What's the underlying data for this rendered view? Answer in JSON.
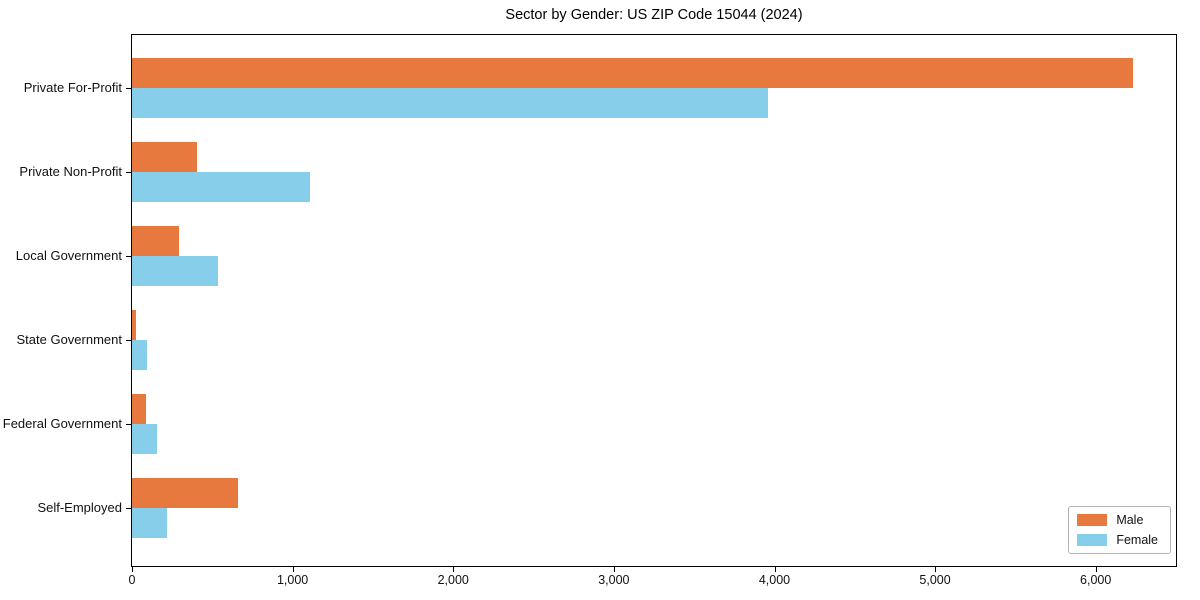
{
  "figure": {
    "background": "#ffffff",
    "axis_color": "#000000",
    "text_color": "#111111"
  },
  "chart_data": {
    "type": "bar",
    "orientation": "horizontal",
    "title": "Sector by Gender: US ZIP Code 15044 (2024)",
    "xlabel": "",
    "ylabel": "",
    "categories": [
      "Private For-Profit",
      "Private Non-Profit",
      "Local Government",
      "State Government",
      "Federal Government",
      "Self-Employed"
    ],
    "series": [
      {
        "name": "Male",
        "color": "#E8793E",
        "values": [
          6230,
          405,
          295,
          25,
          87,
          660
        ]
      },
      {
        "name": "Female",
        "color": "#87CEEB",
        "values": [
          3960,
          1105,
          535,
          95,
          155,
          220
        ]
      }
    ],
    "xlim": [
      0,
      6500
    ],
    "x_ticks": [
      0,
      1000,
      2000,
      3000,
      4000,
      5000,
      6000
    ],
    "x_tick_labels": [
      "0",
      "1,000",
      "2,000",
      "3,000",
      "4,000",
      "5,000",
      "6,000"
    ],
    "grid": false,
    "legend": {
      "position": "lower right"
    }
  }
}
